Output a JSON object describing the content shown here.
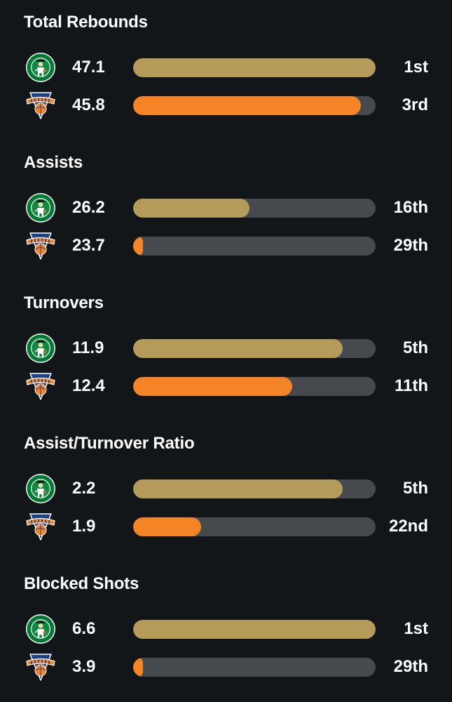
{
  "colors": {
    "background": "#131619",
    "track": "#464a4f",
    "celtics_bar": "#b59b5a",
    "knicks_bar": "#f58426"
  },
  "teams": {
    "celtics": {
      "logo_icon": "celtics-logo-icon"
    },
    "knicks": {
      "logo_icon": "knicks-logo-icon"
    }
  },
  "sections": [
    {
      "title": "Total Rebounds",
      "rows": [
        {
          "team": "celtics",
          "value": "47.1",
          "rank": "1st",
          "bar_fill": 1.0
        },
        {
          "team": "knicks",
          "value": "45.8",
          "rank": "3rd",
          "bar_fill": 0.94
        }
      ]
    },
    {
      "title": "Assists",
      "rows": [
        {
          "team": "celtics",
          "value": "26.2",
          "rank": "16th",
          "bar_fill": 0.48
        },
        {
          "team": "knicks",
          "value": "23.7",
          "rank": "29th",
          "bar_fill": 0.04
        }
      ]
    },
    {
      "title": "Turnovers",
      "rows": [
        {
          "team": "celtics",
          "value": "11.9",
          "rank": "5th",
          "bar_fill": 0.865
        },
        {
          "team": "knicks",
          "value": "12.4",
          "rank": "11th",
          "bar_fill": 0.655
        }
      ]
    },
    {
      "title": "Assist/Turnover Ratio",
      "rows": [
        {
          "team": "celtics",
          "value": "2.2",
          "rank": "5th",
          "bar_fill": 0.865
        },
        {
          "team": "knicks",
          "value": "1.9",
          "rank": "22nd",
          "bar_fill": 0.28
        }
      ]
    },
    {
      "title": "Blocked Shots",
      "rows": [
        {
          "team": "celtics",
          "value": "6.6",
          "rank": "1st",
          "bar_fill": 1.0
        },
        {
          "team": "knicks",
          "value": "3.9",
          "rank": "29th",
          "bar_fill": 0.04
        }
      ]
    }
  ]
}
